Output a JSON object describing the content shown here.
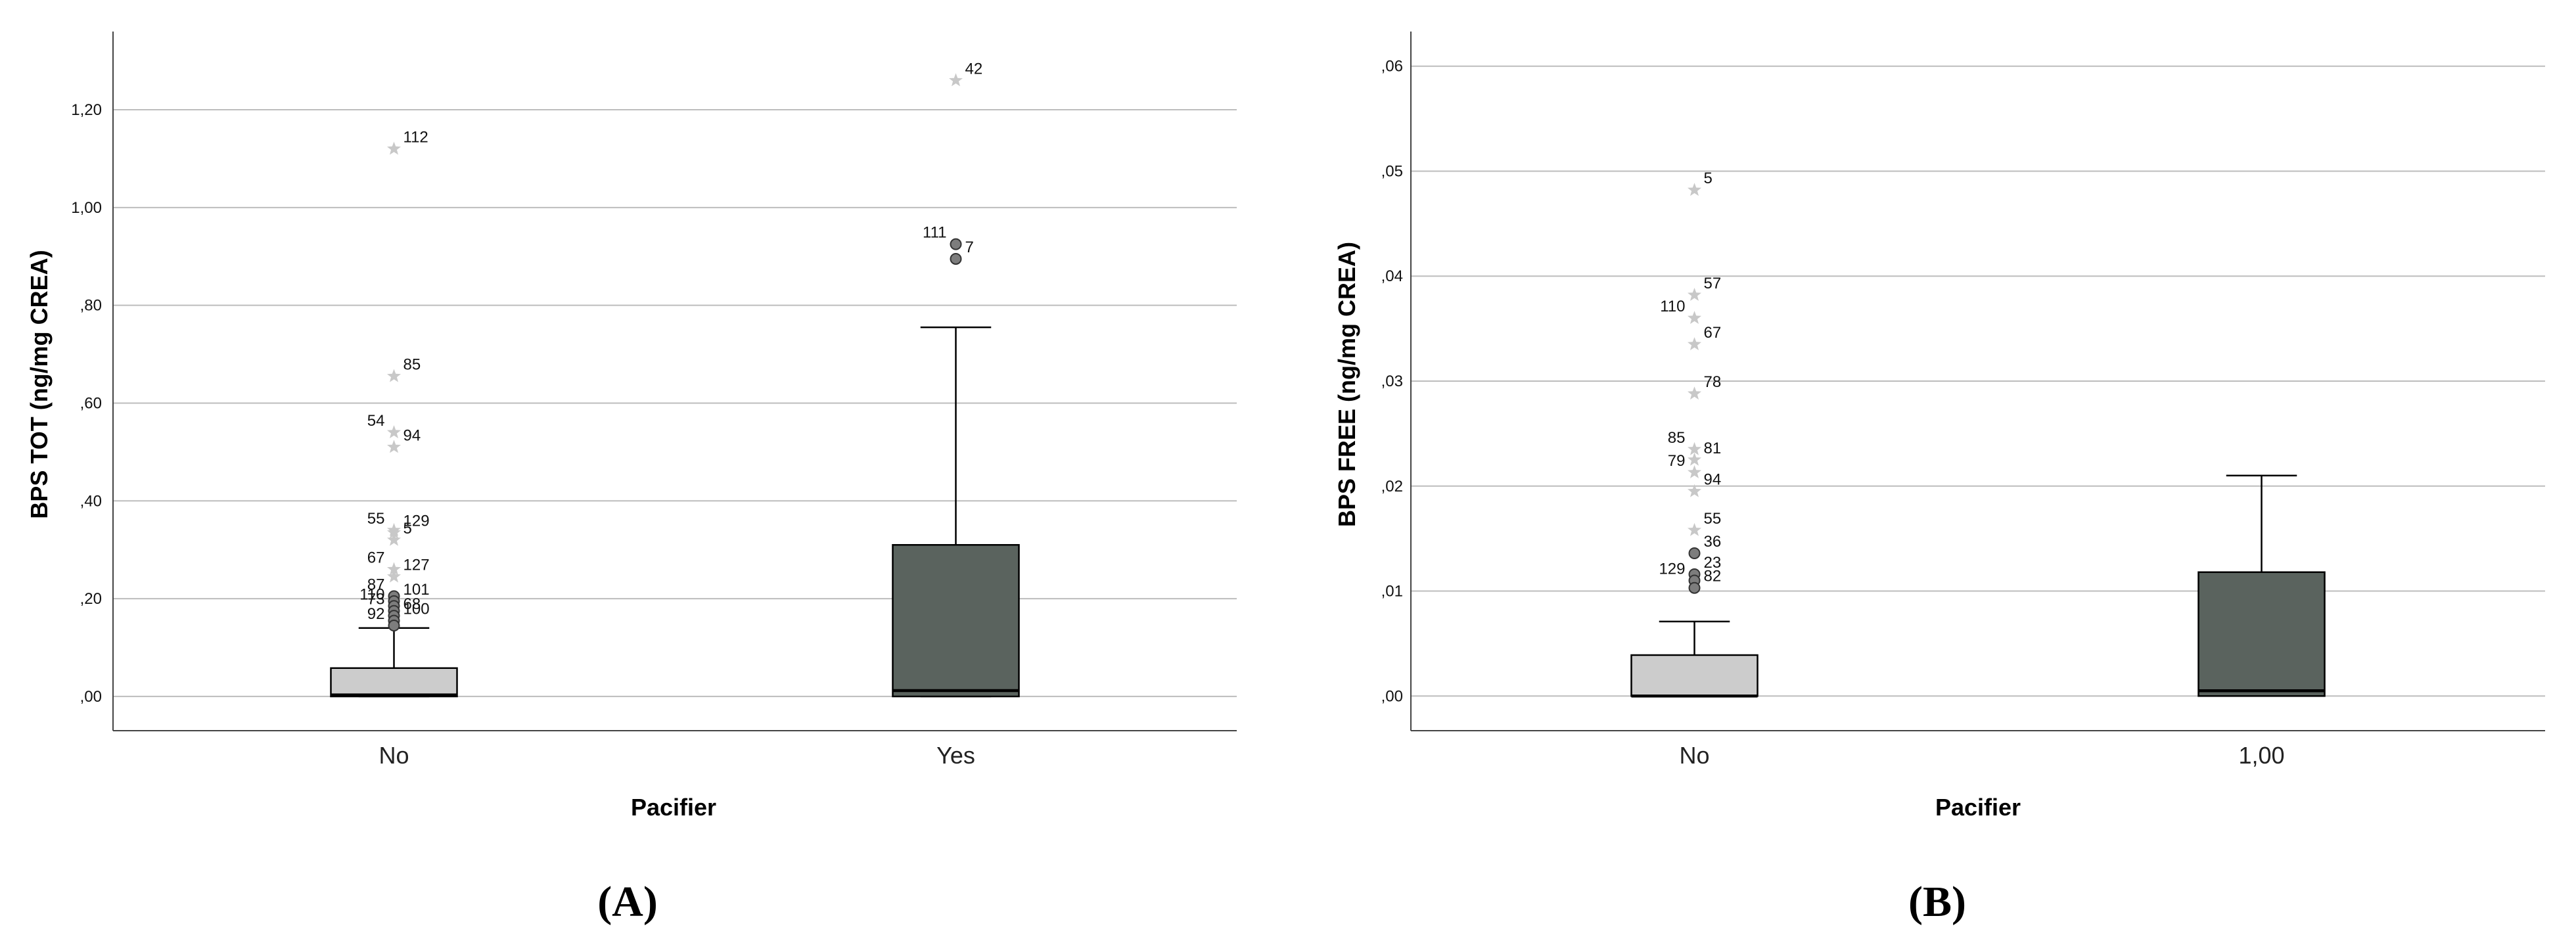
{
  "chart_data": [
    {
      "type": "box",
      "panel_label": "(A)",
      "ylabel": "BPS TOT (ng/mg CREA)",
      "xlabel": "Pacifier",
      "ylim": [
        -0.07,
        1.36
      ],
      "yticks": [
        0.0,
        0.2,
        0.4,
        0.6,
        0.8,
        1.0,
        1.2
      ],
      "yticklabels": [
        ",00",
        ",20",
        ",40",
        ",60",
        ",80",
        "1,00",
        "1,20"
      ],
      "grid": true,
      "boxes": [
        {
          "category": "No",
          "fill": "#cccccc",
          "q1": 0.0,
          "median": 0.003,
          "q3": 0.058,
          "whisker_low": 0.0,
          "whisker_high": 0.14,
          "outliers": [
            {
              "label": "112",
              "value": 1.12,
              "kind": "extreme",
              "side": "right"
            },
            {
              "label": "85",
              "value": 0.655,
              "kind": "extreme",
              "side": "right"
            },
            {
              "label": "54",
              "value": 0.54,
              "kind": "extreme",
              "side": "left"
            },
            {
              "label": "94",
              "value": 0.51,
              "kind": "extreme",
              "side": "right"
            },
            {
              "label": "55",
              "value": 0.34,
              "kind": "extreme",
              "side": "left"
            },
            {
              "label": "129",
              "value": 0.335,
              "kind": "extreme",
              "side": "right"
            },
            {
              "label": "5",
              "value": 0.32,
              "kind": "extreme",
              "side": "right"
            },
            {
              "label": "67",
              "value": 0.26,
              "kind": "extreme",
              "side": "left"
            },
            {
              "label": "127",
              "value": 0.245,
              "kind": "extreme",
              "side": "right"
            },
            {
              "label": "87",
              "value": 0.205,
              "kind": "outlier",
              "side": "left"
            },
            {
              "label": "101",
              "value": 0.195,
              "kind": "outlier",
              "side": "right"
            },
            {
              "label": "110",
              "value": 0.185,
              "kind": "outlier",
              "side": "left"
            },
            {
              "label": "73",
              "value": 0.175,
              "kind": "outlier",
              "side": "left"
            },
            {
              "label": "68",
              "value": 0.165,
              "kind": "outlier",
              "side": "right"
            },
            {
              "label": "100",
              "value": 0.155,
              "kind": "outlier",
              "side": "right"
            },
            {
              "label": "92",
              "value": 0.145,
              "kind": "outlier",
              "side": "left"
            }
          ]
        },
        {
          "category": "Yes",
          "fill": "#5a635e",
          "q1": 0.0,
          "median": 0.012,
          "q3": 0.31,
          "whisker_low": 0.0,
          "whisker_high": 0.755,
          "outliers": [
            {
              "label": "42",
              "value": 1.26,
              "kind": "extreme",
              "side": "right"
            },
            {
              "label": "111",
              "value": 0.925,
              "kind": "outlier",
              "side": "left"
            },
            {
              "label": "7",
              "value": 0.895,
              "kind": "outlier",
              "side": "right"
            }
          ]
        }
      ]
    },
    {
      "type": "box",
      "panel_label": "(B)",
      "ylabel": "BPS FREE (ng/mg CREA)",
      "xlabel": "Pacifier",
      "ylim": [
        -0.0033,
        0.0633
      ],
      "yticks": [
        0.0,
        0.01,
        0.02,
        0.03,
        0.04,
        0.05,
        0.06
      ],
      "yticklabels": [
        ",00",
        ",01",
        ",02",
        ",03",
        ",04",
        ",05",
        ",06"
      ],
      "grid": true,
      "boxes": [
        {
          "category": "No",
          "fill": "#cccccc",
          "q1": 0.0,
          "median": 0.0,
          "q3": 0.0039,
          "whisker_low": 0.0,
          "whisker_high": 0.0071,
          "outliers": [
            {
              "label": "5",
              "value": 0.0482,
              "kind": "extreme",
              "side": "right"
            },
            {
              "label": "57",
              "value": 0.0382,
              "kind": "extreme",
              "side": "right"
            },
            {
              "label": "110",
              "value": 0.036,
              "kind": "extreme",
              "side": "left"
            },
            {
              "label": "67",
              "value": 0.0335,
              "kind": "extreme",
              "side": "right"
            },
            {
              "label": "78",
              "value": 0.0288,
              "kind": "extreme",
              "side": "right"
            },
            {
              "label": "85",
              "value": 0.0235,
              "kind": "extreme",
              "side": "left"
            },
            {
              "label": "81",
              "value": 0.0225,
              "kind": "extreme",
              "side": "right"
            },
            {
              "label": "79",
              "value": 0.0213,
              "kind": "extreme",
              "side": "left"
            },
            {
              "label": "94",
              "value": 0.0195,
              "kind": "extreme",
              "side": "right"
            },
            {
              "label": "55",
              "value": 0.0158,
              "kind": "extreme",
              "side": "right"
            },
            {
              "label": "36",
              "value": 0.0136,
              "kind": "outlier",
              "side": "right"
            },
            {
              "label": "23",
              "value": 0.0116,
              "kind": "outlier",
              "side": "right"
            },
            {
              "label": "129",
              "value": 0.011,
              "kind": "outlier",
              "side": "left"
            },
            {
              "label": "82",
              "value": 0.0103,
              "kind": "outlier",
              "side": "right"
            }
          ]
        },
        {
          "category": "1,00",
          "fill": "#5a635e",
          "q1": 0.0,
          "median": 0.0005,
          "q3": 0.0118,
          "whisker_low": 0.0,
          "whisker_high": 0.021,
          "outliers": []
        }
      ]
    }
  ]
}
